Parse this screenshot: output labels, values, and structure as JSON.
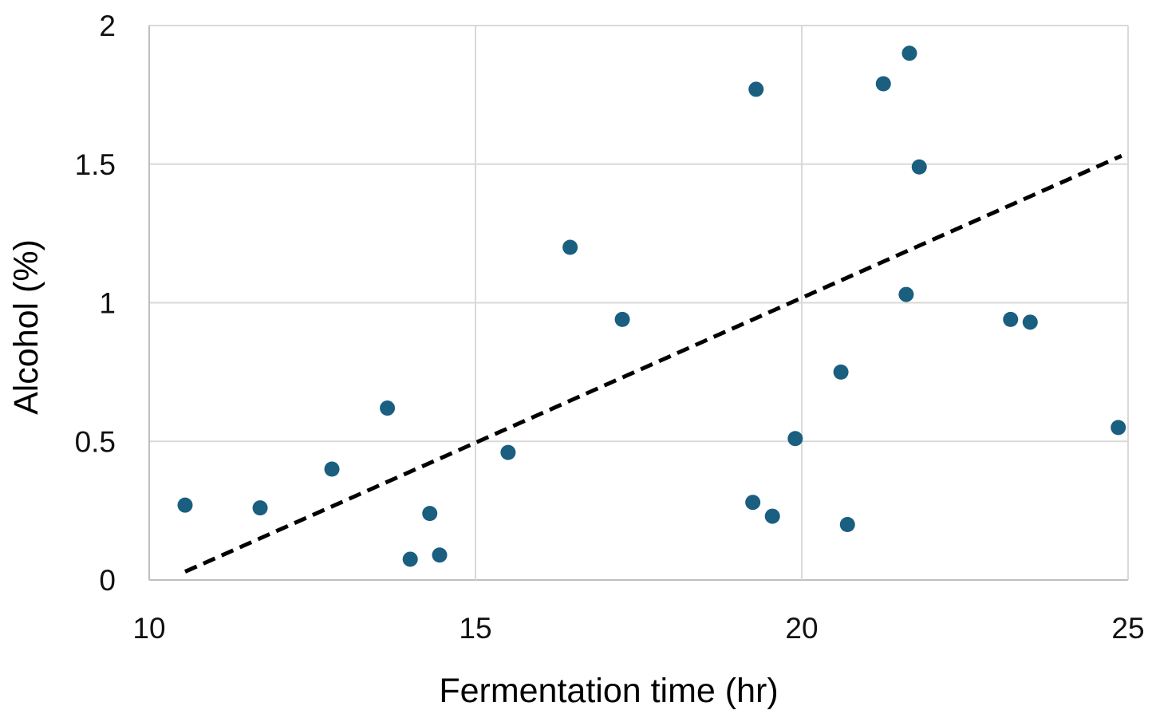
{
  "chart_data": {
    "type": "scatter",
    "title": "",
    "xlabel": "Fermentation time (hr)",
    "ylabel": "Alcohol (%)",
    "xlim": [
      10,
      25
    ],
    "ylim": [
      0,
      2
    ],
    "x_ticks": [
      10,
      15,
      20,
      25
    ],
    "y_ticks": [
      0,
      0.5,
      1,
      1.5,
      2
    ],
    "x_tick_labels": [
      "10",
      "15",
      "20",
      "25"
    ],
    "y_tick_labels": [
      "0",
      "0.5",
      "1",
      "1.5",
      "2"
    ],
    "grid": true,
    "legend": "none",
    "points": [
      {
        "x": 10.55,
        "y": 0.27
      },
      {
        "x": 11.7,
        "y": 0.26
      },
      {
        "x": 12.8,
        "y": 0.4
      },
      {
        "x": 13.65,
        "y": 0.62
      },
      {
        "x": 14.0,
        "y": 0.075
      },
      {
        "x": 14.3,
        "y": 0.24
      },
      {
        "x": 14.45,
        "y": 0.09
      },
      {
        "x": 15.5,
        "y": 0.46
      },
      {
        "x": 16.45,
        "y": 1.2
      },
      {
        "x": 17.25,
        "y": 0.94
      },
      {
        "x": 19.25,
        "y": 0.28
      },
      {
        "x": 19.3,
        "y": 1.77
      },
      {
        "x": 19.55,
        "y": 0.23
      },
      {
        "x": 19.9,
        "y": 0.51
      },
      {
        "x": 20.6,
        "y": 0.75
      },
      {
        "x": 20.7,
        "y": 0.2
      },
      {
        "x": 21.25,
        "y": 1.79
      },
      {
        "x": 21.6,
        "y": 1.03
      },
      {
        "x": 21.65,
        "y": 1.9
      },
      {
        "x": 21.8,
        "y": 1.49
      },
      {
        "x": 23.2,
        "y": 0.94
      },
      {
        "x": 23.5,
        "y": 0.93
      },
      {
        "x": 24.85,
        "y": 0.55
      }
    ],
    "trendline": {
      "style": "dashed",
      "color": "#000000",
      "from": {
        "x": 10.55,
        "y": 0.03
      },
      "to": {
        "x": 24.9,
        "y": 1.53
      }
    },
    "colors": {
      "marker": "#1a5e80",
      "grid": "#d9d9d9",
      "axis": "#bfbfbf"
    }
  }
}
